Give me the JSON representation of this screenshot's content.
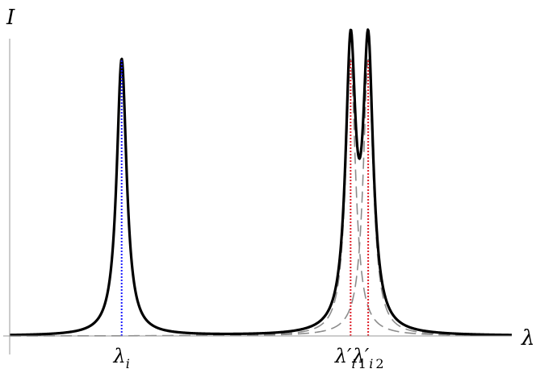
{
  "chart_data": {
    "type": "line",
    "xlabel": "λ",
    "ylabel": "I",
    "xlim": [
      0,
      10
    ],
    "ylim": [
      0,
      1
    ],
    "grid": false,
    "legend": "none",
    "ticks": [
      {
        "main": "λ",
        "prime": "",
        "sub": "i",
        "sub_num": "",
        "x": 2.23
      },
      {
        "main": "λ",
        "prime": "′",
        "sub": "i",
        "sub_num": "1",
        "x": 6.79
      },
      {
        "main": "λ",
        "prime": "′",
        "sub": "i",
        "sub_num": "2",
        "x": 7.14
      }
    ],
    "peaks": [
      {
        "center": 2.23,
        "height": 0.87,
        "width": 0.12
      },
      {
        "center": 6.79,
        "height": 0.87,
        "width": 0.12
      },
      {
        "center": 7.14,
        "height": 0.87,
        "width": 0.12
      }
    ],
    "series": [
      {
        "role": "total",
        "style": "solid",
        "color": "#000000",
        "components": [
          0,
          1,
          2
        ]
      },
      {
        "role": "component",
        "style": "dashed",
        "color": "#8c8c8c",
        "components": [
          1
        ]
      },
      {
        "role": "component",
        "style": "dashed",
        "color": "#8c8c8c",
        "components": [
          2
        ]
      }
    ],
    "markers": [
      {
        "x": 2.23,
        "top": 0.87,
        "style": "dotted",
        "color": "#1a1aff"
      },
      {
        "x": 6.79,
        "top": 0.87,
        "style": "dotted",
        "color": "#e0202a"
      },
      {
        "x": 7.14,
        "top": 0.87,
        "style": "dotted",
        "color": "#e0202a"
      }
    ]
  }
}
